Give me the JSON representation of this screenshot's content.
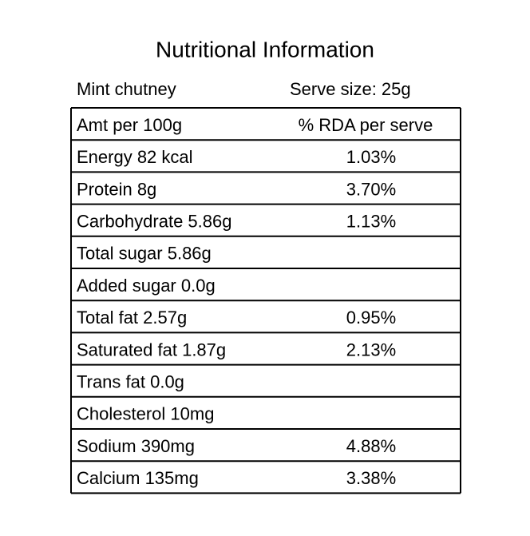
{
  "header": {
    "title": "Nutritional Information",
    "product": "Mint chutney",
    "serve_size": "Serve size: 25g"
  },
  "table": {
    "columns": [
      "Amt per 100g",
      "% RDA per serve"
    ],
    "rows": [
      {
        "nutrient": "Energy 82 kcal",
        "rda": "1.03%"
      },
      {
        "nutrient": "Protein 8g",
        "rda": "3.70%"
      },
      {
        "nutrient": "Carbohydrate 5.86g",
        "rda": "1.13%"
      },
      {
        "nutrient": "Total sugar 5.86g"
      },
      {
        "nutrient": "Added sugar 0.0g"
      },
      {
        "nutrient": "Total fat 2.57g",
        "rda": "0.95%"
      },
      {
        "nutrient": "Saturated fat 1.87g",
        "rda": "2.13%"
      },
      {
        "nutrient": "Trans fat 0.0g"
      },
      {
        "nutrient": "Cholesterol 10mg"
      },
      {
        "nutrient": "Sodium 390mg",
        "rda": "4.88%"
      },
      {
        "nutrient": "Calcium 135mg",
        "rda": "3.38%"
      }
    ]
  }
}
